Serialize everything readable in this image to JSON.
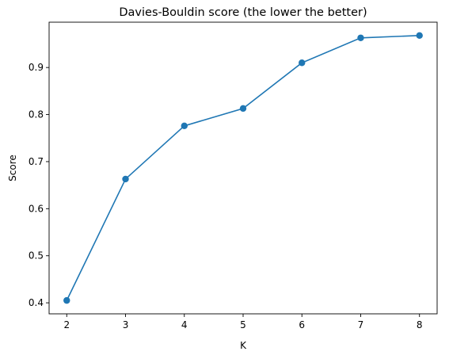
{
  "chart_data": {
    "type": "line",
    "title": "Davies-Bouldin score (the lower the better)",
    "xlabel": "K",
    "ylabel": "Score",
    "x": [
      2,
      3,
      4,
      5,
      6,
      7,
      8
    ],
    "series": [
      {
        "values": [
          0.405,
          0.663,
          0.776,
          0.813,
          0.91,
          0.963,
          0.968
        ]
      }
    ],
    "xticks": [
      2,
      3,
      4,
      5,
      6,
      7,
      8
    ],
    "yticks": [
      0.4,
      0.5,
      0.6,
      0.7,
      0.8,
      0.9
    ],
    "xlim": [
      1.7,
      8.3
    ],
    "ylim": [
      0.3766,
      0.9963
    ],
    "grid": false,
    "line_color": "#1f77b4",
    "marker": "circle"
  }
}
